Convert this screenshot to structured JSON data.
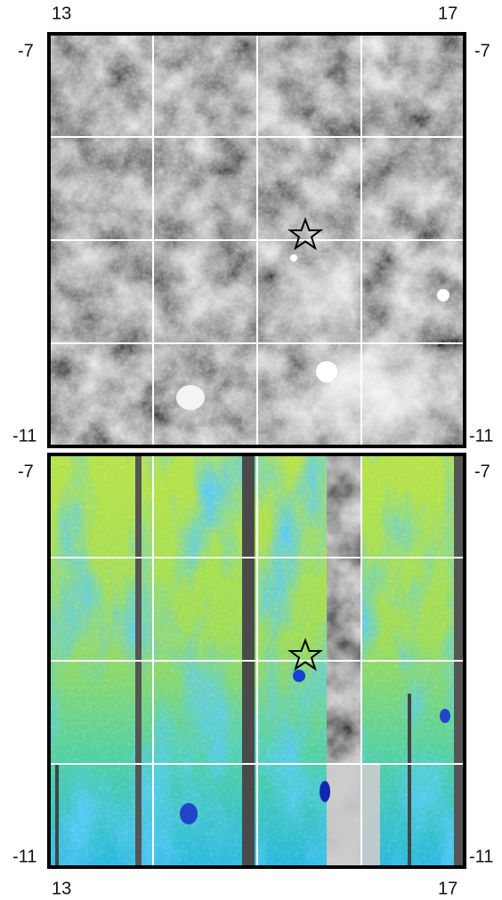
{
  "top_panel": {
    "x_labels": [
      "13",
      "17"
    ],
    "left_labels": [
      "-7",
      "-11"
    ],
    "right_labels": [
      "-7",
      "-11"
    ]
  },
  "bottom_panel": {
    "left_labels": [
      "-7",
      "-11"
    ],
    "right_labels": [
      "-7",
      "-11"
    ],
    "x_labels": [
      "13",
      "17"
    ]
  }
}
